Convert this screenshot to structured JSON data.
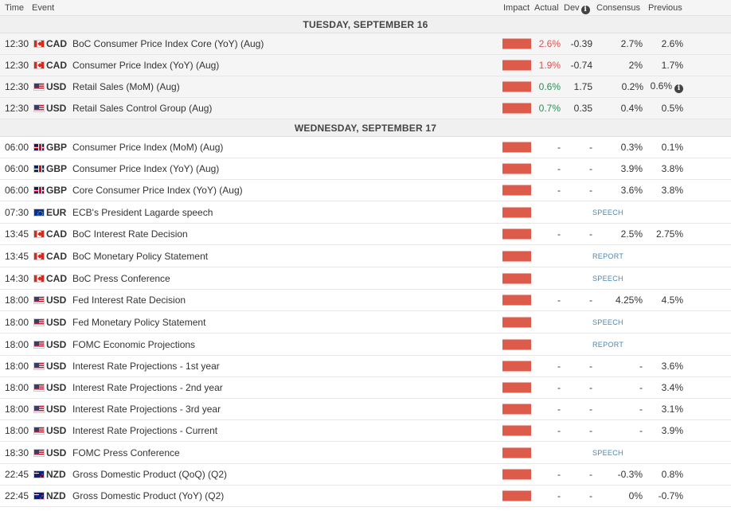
{
  "header": {
    "time": "Time",
    "event": "Event",
    "impact": "Impact",
    "actual": "Actual",
    "dev": "Dev",
    "consensus": "Consensus",
    "previous": "Previous"
  },
  "colors": {
    "impact_high": "#dd5b4a",
    "actual_worse": "#d9534f",
    "actual_better": "#2e8b57",
    "tag": "#4a87b5"
  },
  "days": [
    {
      "label": "TUESDAY, SEPTEMBER 16",
      "events": [
        {
          "time": "12:30",
          "flag": "cad",
          "currency": "CAD",
          "name": "BoC Consumer Price Index Core (YoY) (Aug)",
          "actual": "2.6%",
          "actual_color": "red",
          "dev": "-0.39",
          "consensus": "2.7%",
          "previous": "2.6%",
          "highlight": true
        },
        {
          "time": "12:30",
          "flag": "cad",
          "currency": "CAD",
          "name": "Consumer Price Index (YoY) (Aug)",
          "actual": "1.9%",
          "actual_color": "red",
          "dev": "-0.74",
          "consensus": "2%",
          "previous": "1.7%",
          "highlight": true
        },
        {
          "time": "12:30",
          "flag": "usd",
          "currency": "USD",
          "name": "Retail Sales (MoM) (Aug)",
          "actual": "0.6%",
          "actual_color": "green",
          "dev": "1.75",
          "consensus": "0.2%",
          "previous": "0.6%",
          "previous_info": true,
          "highlight": true
        },
        {
          "time": "12:30",
          "flag": "usd",
          "currency": "USD",
          "name": "Retail Sales Control Group (Aug)",
          "actual": "0.7%",
          "actual_color": "green",
          "dev": "0.35",
          "consensus": "0.4%",
          "previous": "0.5%",
          "highlight": true
        }
      ]
    },
    {
      "label": "WEDNESDAY, SEPTEMBER 17",
      "events": [
        {
          "time": "06:00",
          "flag": "gbp",
          "currency": "GBP",
          "name": "Consumer Price Index (MoM) (Aug)",
          "actual": "-",
          "dev": "-",
          "consensus": "0.3%",
          "previous": "0.1%"
        },
        {
          "time": "06:00",
          "flag": "gbp",
          "currency": "GBP",
          "name": "Consumer Price Index (YoY) (Aug)",
          "actual": "-",
          "dev": "-",
          "consensus": "3.9%",
          "previous": "3.8%"
        },
        {
          "time": "06:00",
          "flag": "gbp",
          "currency": "GBP",
          "name": "Core Consumer Price Index (YoY) (Aug)",
          "actual": "-",
          "dev": "-",
          "consensus": "3.6%",
          "previous": "3.8%"
        },
        {
          "time": "07:30",
          "flag": "eur",
          "currency": "EUR",
          "name": "ECB's President Lagarde speech",
          "tag": "SPEECH",
          "tall": true
        },
        {
          "time": "13:45",
          "flag": "cad",
          "currency": "CAD",
          "name": "BoC Interest Rate Decision",
          "actual": "-",
          "dev": "-",
          "consensus": "2.5%",
          "previous": "2.75%"
        },
        {
          "time": "13:45",
          "flag": "cad",
          "currency": "CAD",
          "name": "BoC Monetary Policy Statement",
          "tag": "REPORT",
          "tall": true
        },
        {
          "time": "14:30",
          "flag": "cad",
          "currency": "CAD",
          "name": "BoC Press Conference",
          "tag": "SPEECH",
          "tall": true
        },
        {
          "time": "18:00",
          "flag": "usd",
          "currency": "USD",
          "name": "Fed Interest Rate Decision",
          "actual": "-",
          "dev": "-",
          "consensus": "4.25%",
          "previous": "4.5%"
        },
        {
          "time": "18:00",
          "flag": "usd",
          "currency": "USD",
          "name": "Fed Monetary Policy Statement",
          "tag": "SPEECH",
          "tall": true
        },
        {
          "time": "18:00",
          "flag": "usd",
          "currency": "USD",
          "name": "FOMC Economic Projections",
          "tag": "REPORT",
          "tall": true
        },
        {
          "time": "18:00",
          "flag": "usd",
          "currency": "USD",
          "name": "Interest Rate Projections - 1st year",
          "actual": "-",
          "dev": "-",
          "consensus": "-",
          "previous": "3.6%"
        },
        {
          "time": "18:00",
          "flag": "usd",
          "currency": "USD",
          "name": "Interest Rate Projections - 2nd year",
          "actual": "-",
          "dev": "-",
          "consensus": "-",
          "previous": "3.4%"
        },
        {
          "time": "18:00",
          "flag": "usd",
          "currency": "USD",
          "name": "Interest Rate Projections - 3rd year",
          "actual": "-",
          "dev": "-",
          "consensus": "-",
          "previous": "3.1%"
        },
        {
          "time": "18:00",
          "flag": "usd",
          "currency": "USD",
          "name": "Interest Rate Projections - Current",
          "actual": "-",
          "dev": "-",
          "consensus": "-",
          "previous": "3.9%"
        },
        {
          "time": "18:30",
          "flag": "usd",
          "currency": "USD",
          "name": "FOMC Press Conference",
          "tag": "SPEECH",
          "tall": true
        },
        {
          "time": "22:45",
          "flag": "nzd",
          "currency": "NZD",
          "name": "Gross Domestic Product (QoQ) (Q2)",
          "actual": "-",
          "dev": "-",
          "consensus": "-0.3%",
          "previous": "0.8%"
        },
        {
          "time": "22:45",
          "flag": "nzd",
          "currency": "NZD",
          "name": "Gross Domestic Product (YoY) (Q2)",
          "actual": "-",
          "dev": "-",
          "consensus": "0%",
          "previous": "-0.7%"
        }
      ]
    }
  ]
}
